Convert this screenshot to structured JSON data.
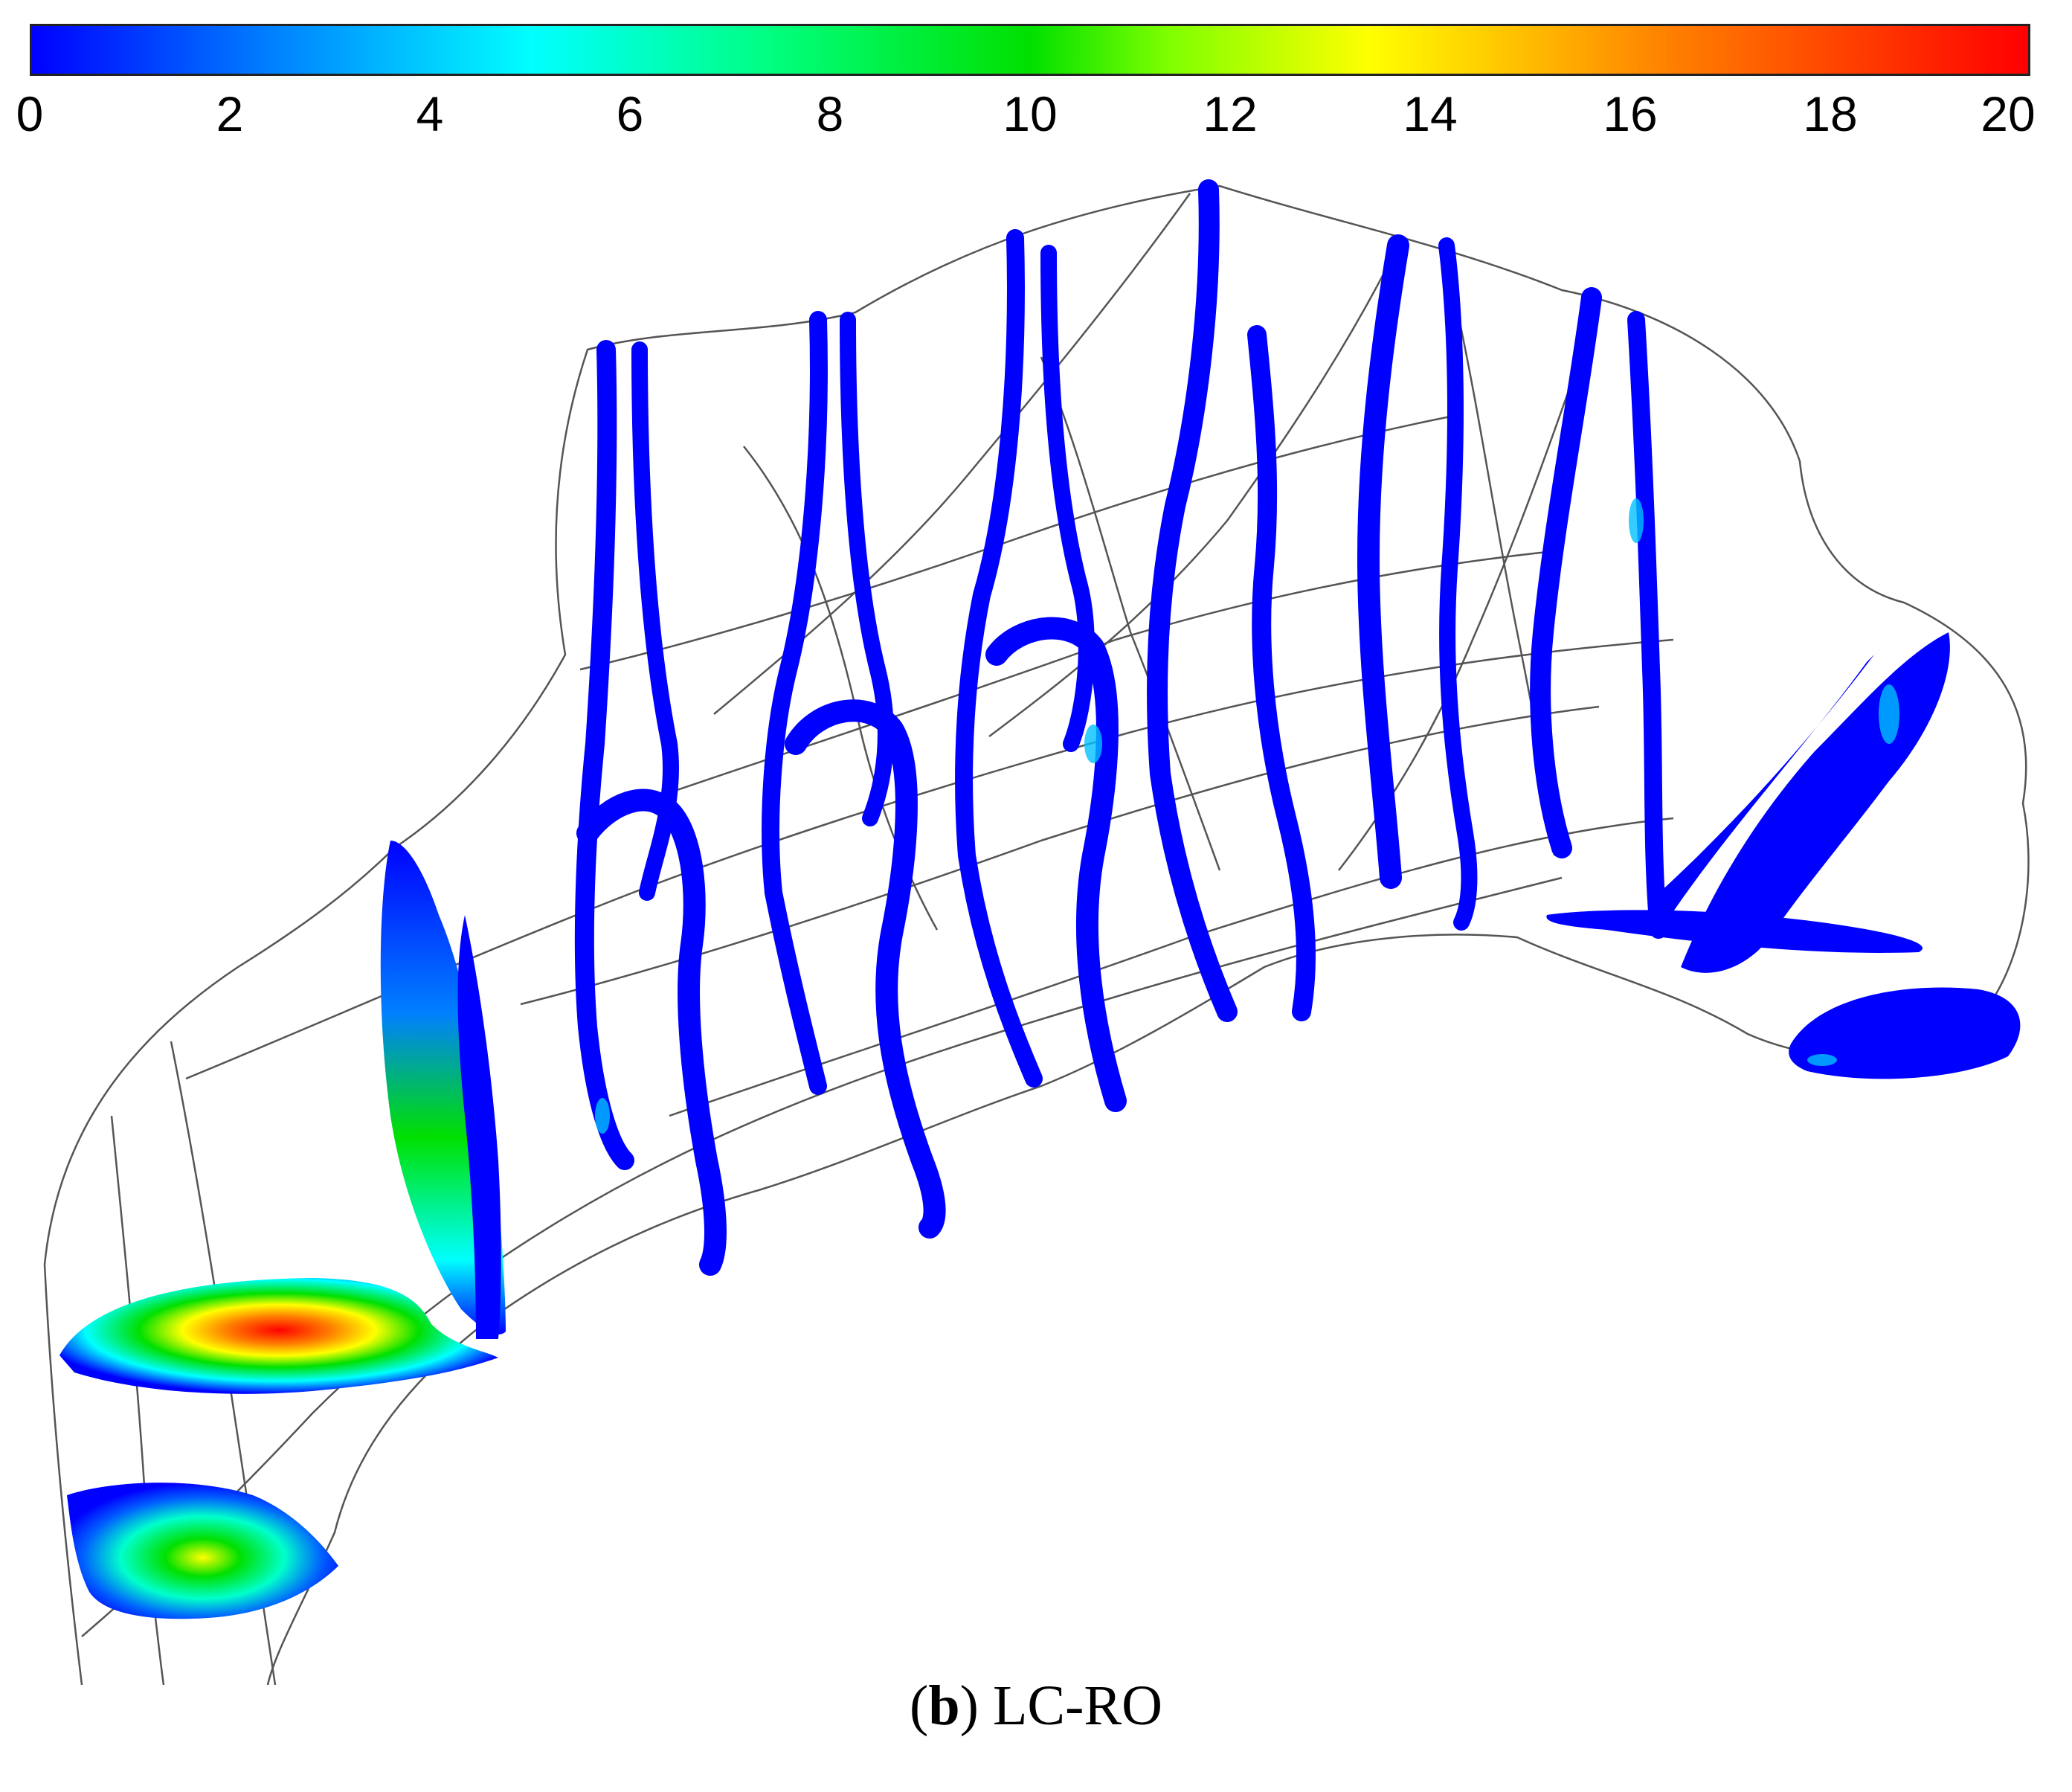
{
  "colorbar": {
    "ticks": [
      "0",
      "2",
      "4",
      "6",
      "8",
      "10",
      "12",
      "14",
      "16",
      "18",
      "20"
    ],
    "range": [
      0,
      20
    ],
    "colors": [
      "#0000ff",
      "#0080ff",
      "#00ffff",
      "#00ff80",
      "#00e000",
      "#ffff00",
      "#ff8000",
      "#ff0000"
    ]
  },
  "caption": {
    "label": "b",
    "open_paren": "(",
    "close_paren": ")",
    "title": " LC-RO"
  }
}
